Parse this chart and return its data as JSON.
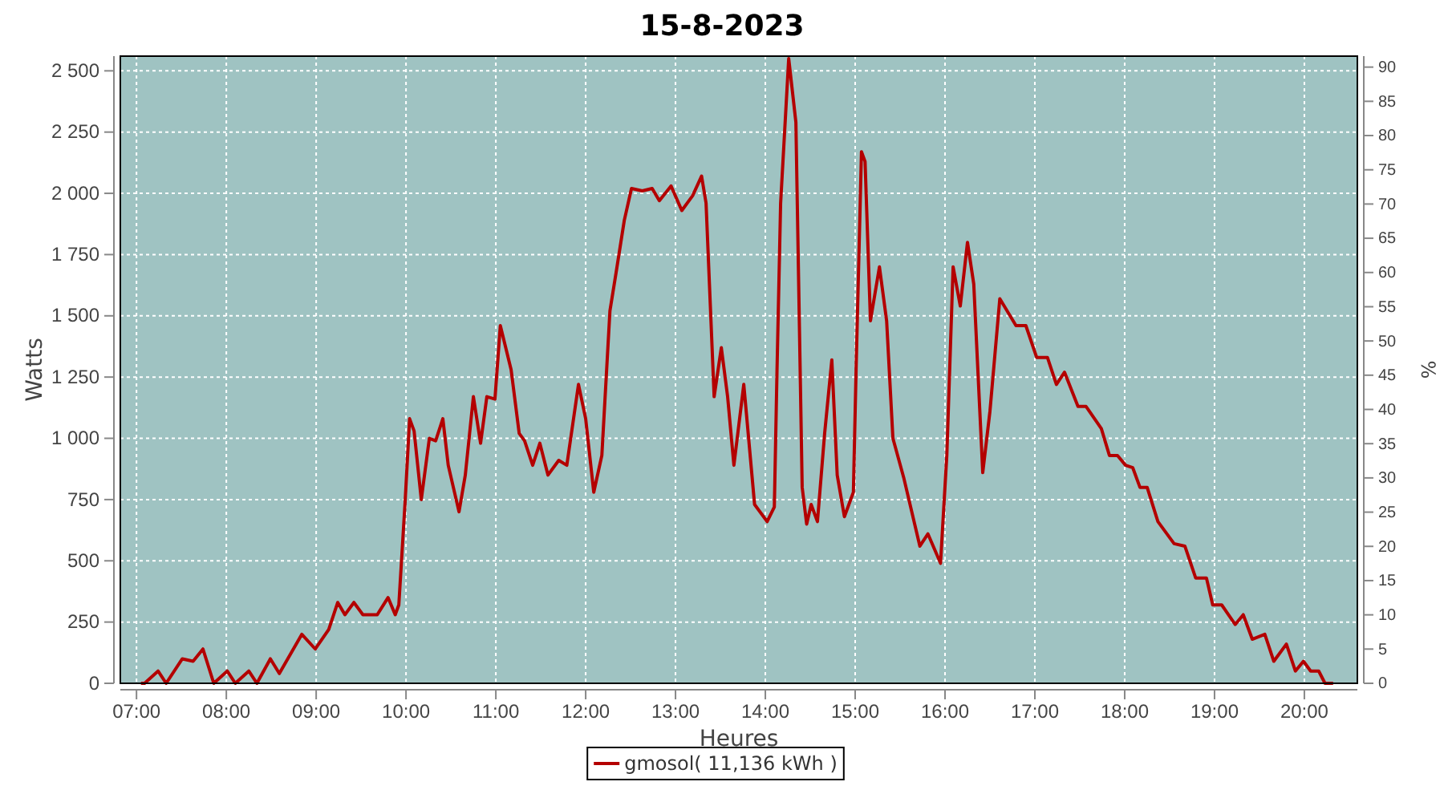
{
  "chart_data": {
    "type": "line",
    "title": "15-8-2023",
    "xlabel": "Heures",
    "ylabel": "Watts",
    "y2label": "%",
    "xlim": [
      6.82,
      20.59
    ],
    "xticks": [
      {
        "value": 7,
        "label": "07:00"
      },
      {
        "value": 8,
        "label": "08:00"
      },
      {
        "value": 9,
        "label": "09:00"
      },
      {
        "value": 10,
        "label": "10:00"
      },
      {
        "value": 11,
        "label": "11:00"
      },
      {
        "value": 12,
        "label": "12:00"
      },
      {
        "value": 13,
        "label": "13:00"
      },
      {
        "value": 14,
        "label": "14:00"
      },
      {
        "value": 15,
        "label": "15:00"
      },
      {
        "value": 16,
        "label": "16:00"
      },
      {
        "value": 17,
        "label": "17:00"
      },
      {
        "value": 18,
        "label": "18:00"
      },
      {
        "value": 19,
        "label": "19:00"
      },
      {
        "value": 20,
        "label": "20:00"
      }
    ],
    "ylim": [
      0,
      2560
    ],
    "yticks": [
      0,
      250,
      500,
      750,
      {
        "value": 1000,
        "label": "1 000"
      },
      {
        "value": 1250,
        "label": "1 250"
      },
      {
        "value": 1500,
        "label": "1 500"
      },
      {
        "value": 1750,
        "label": "1 750"
      },
      {
        "value": 2000,
        "label": "2 000"
      },
      {
        "value": 2250,
        "label": "2 250"
      },
      {
        "value": 2500,
        "label": "2 500"
      }
    ],
    "y2lim": [
      0,
      91.6
    ],
    "y2ticks": [
      0,
      5,
      10,
      15,
      20,
      25,
      30,
      35,
      40,
      45,
      50,
      55,
      60,
      65,
      70,
      75,
      80,
      85,
      90
    ],
    "grid": true,
    "legend": "bottom",
    "marker": "none",
    "line_style": "solid",
    "series": [
      {
        "name": "gmosol( 11,136 kWh )",
        "color": "#b40000",
        "x": [
          7.05,
          7.09,
          7.24,
          7.33,
          7.51,
          7.63,
          7.74,
          7.86,
          8.01,
          8.1,
          8.25,
          8.34,
          8.49,
          8.59,
          8.84,
          8.99,
          9.14,
          9.24,
          9.32,
          9.42,
          9.52,
          9.68,
          9.8,
          9.88,
          9.92,
          9.99,
          10.04,
          10.09,
          10.17,
          10.26,
          10.33,
          10.41,
          10.47,
          10.59,
          10.66,
          10.75,
          10.83,
          10.9,
          10.99,
          11.05,
          11.17,
          11.26,
          11.32,
          11.41,
          11.49,
          11.58,
          11.7,
          11.79,
          11.92,
          12.0,
          12.09,
          12.18,
          12.27,
          12.34,
          12.43,
          12.51,
          12.63,
          12.74,
          12.82,
          12.95,
          13.07,
          13.19,
          13.29,
          13.34,
          13.43,
          13.51,
          13.58,
          13.65,
          13.76,
          13.88,
          14.02,
          14.1,
          14.13,
          14.17,
          14.26,
          14.34,
          14.41,
          14.46,
          14.51,
          14.58,
          14.66,
          14.74,
          14.8,
          14.88,
          14.98,
          15.01,
          15.07,
          15.11,
          15.17,
          15.27,
          15.35,
          15.42,
          15.54,
          15.72,
          15.81,
          15.95,
          16.02,
          16.09,
          16.17,
          16.25,
          16.32,
          16.42,
          16.5,
          16.61,
          16.79,
          16.9,
          17.02,
          17.14,
          17.24,
          17.33,
          17.48,
          17.57,
          17.74,
          17.83,
          17.92,
          18.01,
          18.09,
          18.17,
          18.25,
          18.37,
          18.55,
          18.67,
          18.79,
          18.91,
          18.98,
          19.08,
          19.23,
          19.32,
          19.42,
          19.56,
          19.66,
          19.8,
          19.9,
          19.99,
          20.07,
          20.16,
          20.23,
          20.32
        ],
        "values": [
          0,
          0,
          50,
          0,
          100,
          90,
          140,
          0,
          50,
          0,
          50,
          0,
          100,
          40,
          200,
          140,
          220,
          330,
          280,
          330,
          280,
          280,
          350,
          280,
          320,
          740,
          1080,
          1030,
          750,
          1000,
          990,
          1080,
          890,
          700,
          850,
          1170,
          980,
          1170,
          1160,
          1460,
          1280,
          1020,
          990,
          890,
          980,
          850,
          910,
          890,
          1220,
          1080,
          780,
          930,
          1520,
          1680,
          1890,
          2020,
          2010,
          2020,
          1970,
          2030,
          1930,
          1990,
          2070,
          1960,
          1170,
          1370,
          1170,
          890,
          1220,
          730,
          660,
          720,
          1280,
          1960,
          2550,
          2290,
          800,
          650,
          730,
          660,
          1020,
          1320,
          850,
          680,
          780,
          1280,
          2170,
          2130,
          1480,
          1700,
          1480,
          1000,
          840,
          560,
          610,
          490,
          930,
          1700,
          1540,
          1800,
          1630,
          860,
          1110,
          1570,
          1460,
          1460,
          1330,
          1330,
          1220,
          1270,
          1130,
          1130,
          1040,
          930,
          930,
          890,
          880,
          800,
          800,
          660,
          570,
          560,
          430,
          430,
          320,
          320,
          240,
          280,
          180,
          200,
          90,
          160,
          50,
          90,
          50,
          50,
          0,
          0
        ]
      }
    ]
  }
}
